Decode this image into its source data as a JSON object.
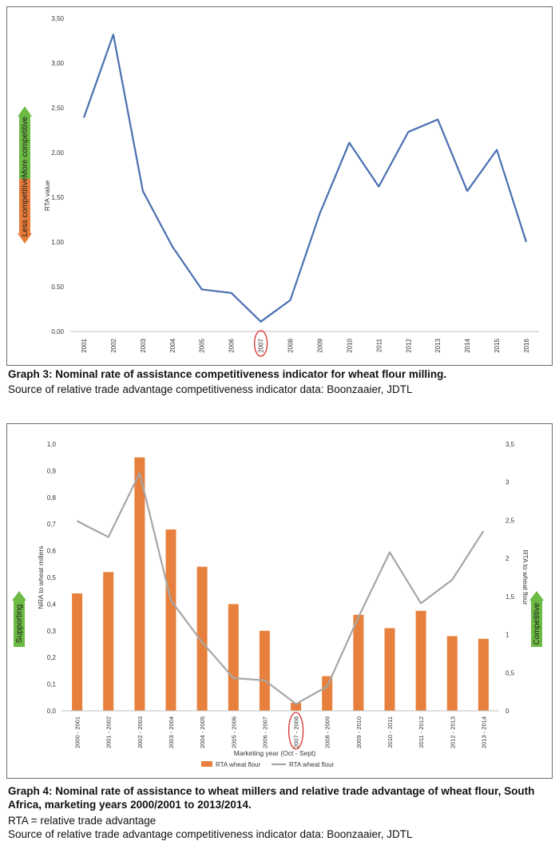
{
  "graph3": {
    "caption": "Graph 3: Nominal rate of assistance competitiveness indicator for wheat flour milling.",
    "source": "Source of relative trade advantage competitiveness indicator data: Boonzaaier, JDTL",
    "arrow_up_label": "More competitive",
    "arrow_down_label": "Less competitive",
    "colors": {
      "line": "#4a6fb0",
      "arrow_up": "#6dbb45",
      "arrow_down": "#e67c3a",
      "highlight": "#d9312b"
    }
  },
  "graph4": {
    "caption": "Graph 4: Nominal rate of assistance to wheat millers and relative trade advantage of wheat flour, South Africa, marketing years 2000/2001 to 2013/2014.",
    "note": "RTA = relative trade advantage",
    "source": "Source of relative trade advantage competitiveness indicator data: Boonzaaier, JDTL",
    "left_arrow_label": "Supporting",
    "right_arrow_label": "Competitive",
    "colors": {
      "bar": "#e8803d",
      "line": "#a6a6a6",
      "arrow": "#6dbb45",
      "highlight": "#d9312b"
    }
  },
  "chart_data": [
    {
      "type": "line",
      "title": "",
      "ylabel": "RTA value",
      "xlabel": "",
      "x": [
        "2001",
        "2002",
        "2003",
        "2004",
        "2005",
        "2006",
        "2007",
        "2008",
        "2009",
        "2010",
        "2011",
        "2012",
        "2013",
        "2014",
        "2015",
        "2016"
      ],
      "series": [
        {
          "values": [
            2.39,
            3.32,
            1.57,
            0.95,
            0.47,
            0.43,
            0.11,
            0.35,
            1.32,
            2.11,
            1.62,
            2.23,
            2.37,
            1.57,
            2.03,
            1.0
          ]
        }
      ],
      "ylim": [
        0,
        3.5
      ],
      "yticks": [
        "0,00",
        "0,50",
        "1,00",
        "1,50",
        "2,00",
        "2,50",
        "3,00",
        "3,50"
      ],
      "highlighted_category": "2007",
      "grid": false
    },
    {
      "type": "bar",
      "title": "",
      "xlabel": "Marketing year (Oct - Sept)",
      "ylabel": "NRA to wheat millers",
      "y2label": "RTA to wheat flour",
      "categories": [
        "2000 - 2001",
        "2001 - 2002",
        "2002 - 2003",
        "2003 - 2004",
        "2004 - 2005",
        "2005 - 2006",
        "2006 - 2007",
        "2007 - 2008",
        "2008 - 2009",
        "2009 - 2010",
        "2010 - 2011",
        "2011 - 2012",
        "2012 - 2013",
        "2013 - 2014"
      ],
      "series": [
        {
          "name": "RTA  wheat flour",
          "kind": "bar",
          "axis": "left",
          "values": [
            0.44,
            0.52,
            0.95,
            0.68,
            0.54,
            0.4,
            0.3,
            0.03,
            0.13,
            0.36,
            0.31,
            0.375,
            0.28,
            0.27
          ]
        },
        {
          "name": "RTA  wheat flour",
          "kind": "line",
          "axis": "right",
          "values": [
            2.49,
            2.28,
            3.12,
            1.45,
            0.9,
            0.43,
            0.4,
            0.09,
            0.32,
            1.23,
            2.08,
            1.41,
            1.72,
            2.36
          ]
        }
      ],
      "ylim": [
        0,
        1.0
      ],
      "y2lim": [
        0,
        3.5
      ],
      "yticks": [
        "0,0",
        "0,1",
        "0,2",
        "0,3",
        "0,4",
        "0,5",
        "0,6",
        "0,7",
        "0,8",
        "0,9",
        "1,0"
      ],
      "y2ticks": [
        "0",
        "0,5",
        "1",
        "1,5",
        "2",
        "2,5",
        "3",
        "3,5"
      ],
      "highlighted_category": "2007 - 2008",
      "legend_position": "bottom",
      "grid": false
    }
  ]
}
